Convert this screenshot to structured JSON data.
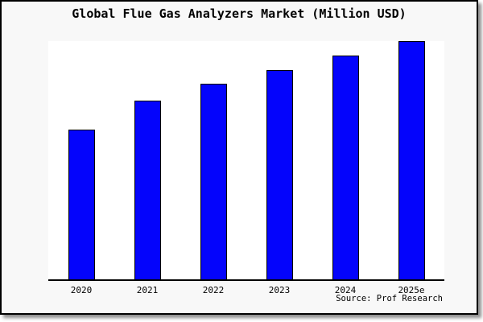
{
  "figure": {
    "title": "Global Flue Gas Analyzers Market (Million USD)",
    "source": "Source: Prof Research"
  },
  "chart_data": {
    "type": "bar",
    "title": "Global Flue Gas Analyzers Market (Million USD)",
    "categories": [
      "2020",
      "2021",
      "2022",
      "2023",
      "2024",
      "2025e"
    ],
    "values": [
      63,
      75,
      82,
      88,
      94,
      100
    ],
    "values_note": "no y-axis or value labels shown; values estimated as relative bar heights with tallest bar (2025e) = 100",
    "xlabel": "",
    "ylabel": "",
    "ylim": [
      0,
      100
    ],
    "grid": false,
    "legend": null,
    "bar_color": "#0404fc",
    "bar_edge_color": "#000000",
    "plot_background": "#ffffff",
    "figure_background": "#f8f8f8",
    "source_annotation": "Source: Prof Research"
  }
}
